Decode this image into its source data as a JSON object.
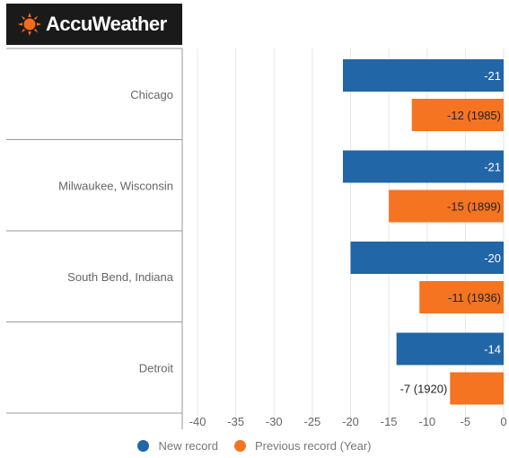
{
  "brand": {
    "name": "AccuWeather",
    "accent": "#f26b1d",
    "background": "#1a1a1a"
  },
  "chart_data": {
    "type": "bar",
    "orientation": "horizontal",
    "categories": [
      "Chicago",
      "Milwaukee, Wisconsin",
      "South Bend, Indiana",
      "Detroit"
    ],
    "series": [
      {
        "name": "New record",
        "color": "#2166a6",
        "values": [
          -21,
          -21,
          -20,
          -14
        ],
        "labels": [
          "-21",
          "-21",
          "-20",
          "-14"
        ]
      },
      {
        "name": "Previous record (Year)",
        "color": "#f47421",
        "values": [
          -12,
          -15,
          -11,
          -7
        ],
        "labels": [
          "-12 (1985)",
          "-15 (1899)",
          "-11 (1936)",
          "-7 (1920)"
        ]
      }
    ],
    "xlim": [
      -42,
      0
    ],
    "xticks": [
      -40,
      -35,
      -30,
      -25,
      -20,
      -15,
      -10,
      -5,
      0
    ],
    "grid": true,
    "legend_position": "bottom"
  }
}
